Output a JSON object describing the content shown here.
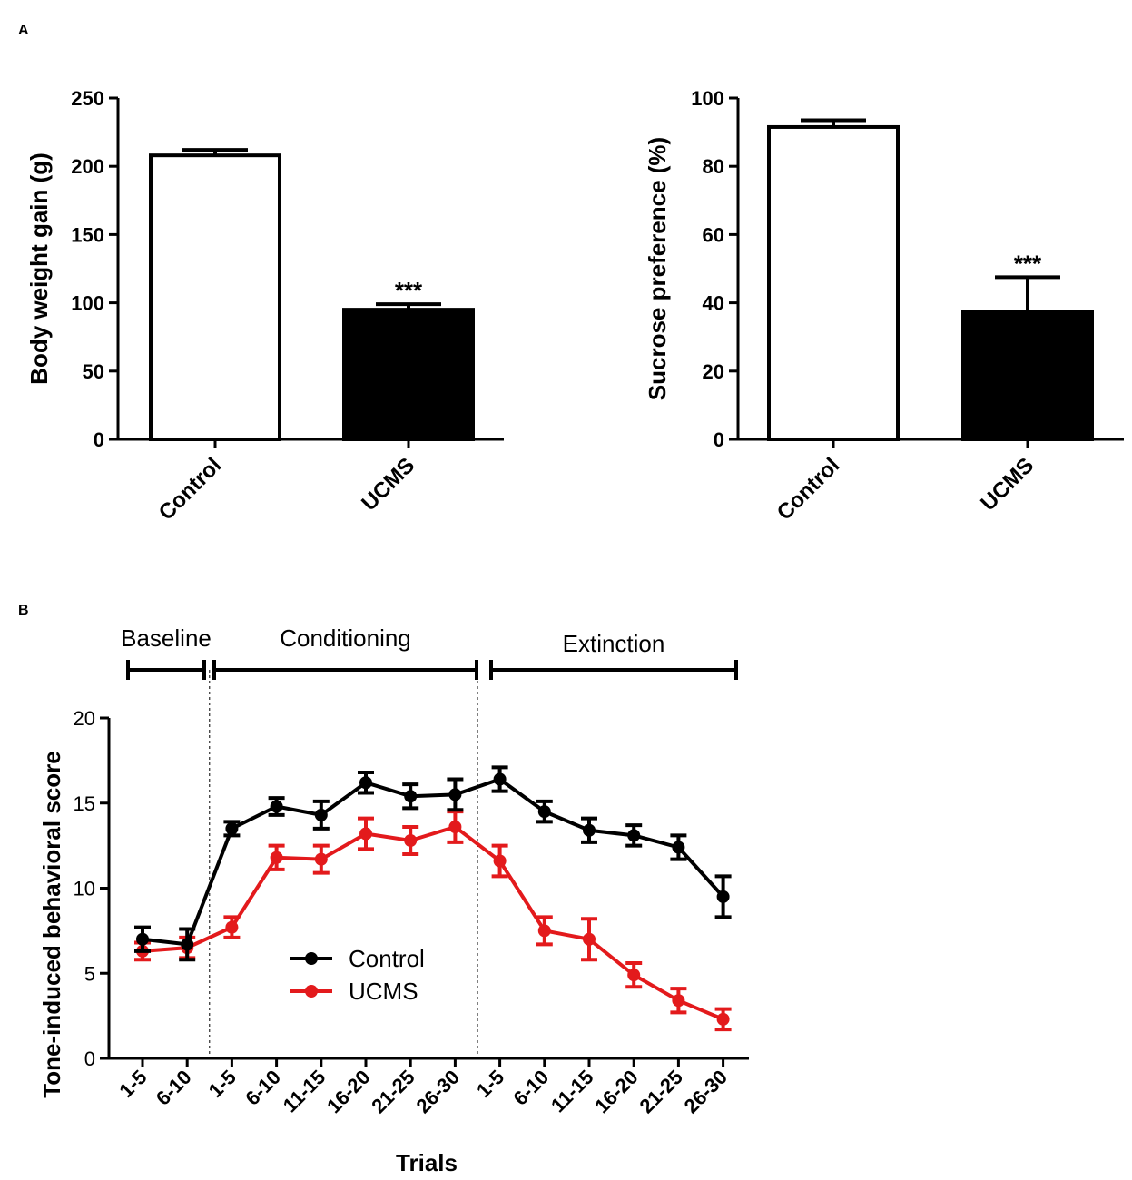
{
  "panel_labels": {
    "a": "A",
    "b": "B"
  },
  "colors": {
    "control": "#000000",
    "ucms": "#e31a1c",
    "ucms_bar": "#000000",
    "control_bar": "#ffffff"
  },
  "chart_data": [
    {
      "id": "weight",
      "type": "bar",
      "title": "",
      "xlabel": "",
      "ylabel": "Body weight gain (g)",
      "categories": [
        "Control",
        "UCMS"
      ],
      "values": [
        208,
        95
      ],
      "errors": [
        4,
        4
      ],
      "significance": [
        "",
        "***"
      ],
      "ylim": [
        0,
        250
      ],
      "yticks": [
        0,
        50,
        100,
        150,
        200,
        250
      ]
    },
    {
      "id": "sucrose",
      "type": "bar",
      "title": "",
      "xlabel": "",
      "ylabel": "Sucrose preference (%)",
      "categories": [
        "Control",
        "UCMS"
      ],
      "values": [
        91.5,
        37.5
      ],
      "errors": [
        2,
        10
      ],
      "significance": [
        "",
        "***"
      ],
      "ylim": [
        0,
        100
      ],
      "yticks": [
        0,
        20,
        40,
        60,
        80,
        100
      ]
    },
    {
      "id": "tone",
      "type": "line",
      "title": "",
      "xlabel": "Trials",
      "ylabel": "Tone-induced behavioral score",
      "ylim": [
        0,
        20
      ],
      "yticks": [
        0,
        5,
        10,
        15,
        20
      ],
      "categories": [
        "1-5",
        "6-10",
        "1-5",
        "6-10",
        "11-15",
        "16-20",
        "21-25",
        "26-30",
        "1-5",
        "6-10",
        "11-15",
        "16-20",
        "21-25",
        "26-30"
      ],
      "x_positions": [
        0,
        1,
        2,
        3,
        4,
        5,
        6,
        7,
        8,
        9,
        10,
        11,
        12,
        13
      ],
      "phases": [
        {
          "label": "Baseline",
          "start": 0,
          "end": 1
        },
        {
          "label": "Conditioning",
          "start": 2,
          "end": 7
        },
        {
          "label": "Extinction",
          "start": 8,
          "end": 13
        }
      ],
      "series": [
        {
          "name": "Control",
          "values": [
            7.0,
            6.7,
            13.5,
            14.8,
            14.3,
            16.2,
            15.4,
            15.5,
            16.4,
            14.5,
            13.4,
            13.1,
            12.4,
            9.5
          ],
          "errors": [
            0.7,
            0.9,
            0.4,
            0.5,
            0.8,
            0.6,
            0.7,
            0.9,
            0.7,
            0.6,
            0.7,
            0.6,
            0.7,
            1.2
          ]
        },
        {
          "name": "UCMS",
          "values": [
            6.3,
            6.5,
            7.7,
            11.8,
            11.7,
            13.2,
            12.8,
            13.6,
            11.6,
            7.5,
            7.0,
            4.9,
            3.4,
            2.3
          ],
          "errors": [
            0.5,
            0.6,
            0.6,
            0.7,
            0.8,
            0.9,
            0.8,
            0.9,
            0.9,
            0.8,
            1.2,
            0.7,
            0.7,
            0.6
          ]
        }
      ]
    }
  ]
}
